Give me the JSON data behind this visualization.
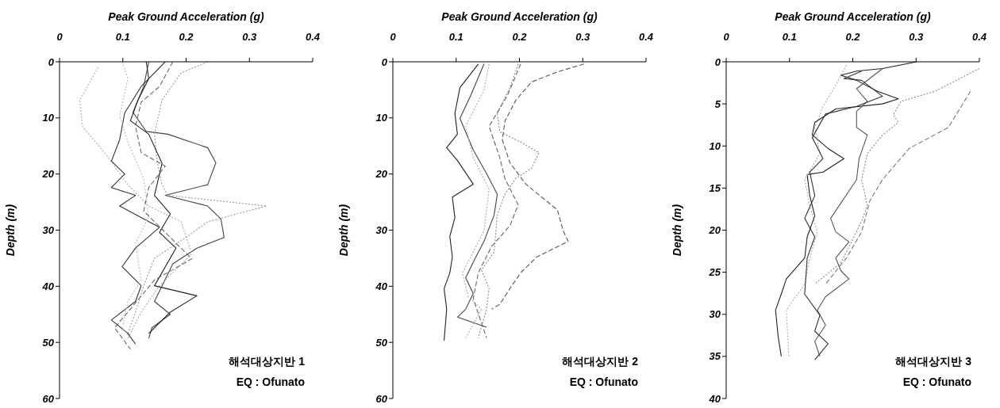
{
  "chart_data": [
    {
      "type": "line",
      "xlabel": "Peak Ground Acceleration (g)",
      "ylabel": "Depth (m)",
      "xlim": [
        0,
        0.4
      ],
      "xticks": [
        0,
        0.1,
        0.2,
        0.3,
        0.4
      ],
      "ylim": [
        60,
        0
      ],
      "yticks": [
        0,
        10,
        20,
        30,
        40,
        50,
        60
      ],
      "marker": "none",
      "annotations": [
        "해석대상지반 1",
        "EQ : Ofunato"
      ],
      "series": [
        {
          "color": "#444444",
          "line_style": "solid",
          "x": [
            0.141,
            0.133,
            0.116,
            0.137,
            0.171,
            0.234,
            0.247,
            0.234,
            0.167,
            0.234,
            0.255,
            0.26,
            0.217,
            0.179,
            0.15,
            0.175,
            0.146,
            0.141
          ],
          "values": [
            0,
            4.4,
            9,
            12.4,
            12.9,
            15.3,
            18,
            21.9,
            23.8,
            25.7,
            28,
            31.3,
            33.2,
            36,
            42.7,
            45,
            47.4,
            49.3
          ]
        },
        {
          "color": "#999999",
          "line_style": "dotted",
          "x": [
            0.234,
            0.192,
            0.162,
            0.15,
            0.154,
            0.162,
            0.171,
            0.327,
            0.234,
            0.2,
            0.15,
            0.133,
            0.12,
            0.108
          ],
          "values": [
            0,
            2,
            6.8,
            12.9,
            17.6,
            21.9,
            23.8,
            25.7,
            28.5,
            31.3,
            35,
            39.9,
            44.6,
            48.4
          ]
        },
        {
          "color": "#aaaaaa",
          "line_style": "dotted",
          "x": [
            0.061,
            0.032,
            0.036,
            0.061,
            0.078,
            0.108,
            0.141,
            0.192,
            0.209,
            0.158,
            0.129,
            0.108
          ],
          "values": [
            1,
            6.8,
            11.5,
            14.8,
            17.2,
            21.9,
            25.7,
            28.5,
            34.2,
            39.9,
            44.6,
            49.3
          ]
        },
        {
          "color": "#333333",
          "line_style": "solid",
          "x": [
            0.167,
            0.129,
            0.103,
            0.095,
            0.082,
            0.103,
            0.082,
            0.12,
            0.095,
            0.158,
            0.12,
            0.099,
            0.129,
            0.12,
            0.082,
            0.108,
            0.12
          ],
          "values": [
            0,
            4.4,
            9.1,
            13.9,
            17.7,
            20,
            22.4,
            23.8,
            25.7,
            29.5,
            33.2,
            36.5,
            39.9,
            42.7,
            46,
            48.4,
            50.3
          ]
        },
        {
          "color": "#222222",
          "line_style": "solid",
          "x": [
            0.137,
            0.141,
            0.124,
            0.112,
            0.141,
            0.162,
            0.15,
            0.175,
            0.158,
            0.184,
            0.15,
            0.217,
            0.175,
            0.141
          ],
          "values": [
            0,
            3,
            6.8,
            10.5,
            12.9,
            18.1,
            23.8,
            27.1,
            30.4,
            33.2,
            39.9,
            41.7,
            44.6,
            48.4
          ]
        },
        {
          "color": "#666666",
          "line_style": "dashed",
          "x": [
            0.179,
            0.158,
            0.129,
            0.12,
            0.129,
            0.167,
            0.141,
            0.133,
            0.167,
            0.209,
            0.15,
            0.108,
            0.087,
            0.112
          ],
          "values": [
            0,
            4.4,
            7.2,
            11.5,
            16.2,
            18.6,
            22.4,
            26.6,
            30.4,
            35.1,
            38.9,
            44.6,
            47.4,
            51.2
          ]
        },
        {
          "color": "#bbbbbb",
          "line_style": "dotted",
          "x": [
            0.099,
            0.108,
            0.095,
            0.108,
            0.133,
            0.141,
            0.12,
            0.129,
            0.108,
            0.099,
            0.112
          ],
          "values": [
            0,
            3,
            9.6,
            14.3,
            20.9,
            27.6,
            32.3,
            38.9,
            42.7,
            47.4,
            49.3
          ]
        }
      ]
    },
    {
      "type": "line",
      "xlabel": "Peak Ground Acceleration (g)",
      "ylabel": "Depth (m)",
      "xlim": [
        0,
        0.4
      ],
      "xticks": [
        0,
        0.1,
        0.2,
        0.3,
        0.4
      ],
      "ylim": [
        60,
        0
      ],
      "yticks": [
        0,
        10,
        20,
        30,
        40,
        50,
        60
      ],
      "marker": "none",
      "annotations": [
        "해석대상지반 2",
        "EQ : Ofunato"
      ],
      "series": [
        {
          "color": "#555555",
          "line_style": "dashed",
          "x": [
            0.302,
            0.26,
            0.219,
            0.194,
            0.177,
            0.173,
            0.185,
            0.21,
            0.235,
            0.26,
            0.269,
            0.277,
            0.227,
            0.202,
            0.185,
            0.169,
            0.156
          ],
          "values": [
            0.4,
            1.8,
            3.6,
            6.9,
            10.6,
            13.9,
            18,
            21.8,
            24.1,
            26.4,
            30.1,
            32,
            34.8,
            37.6,
            40.4,
            43.2,
            44.1
          ]
        },
        {
          "color": "#888888",
          "line_style": "dotted",
          "x": [
            0.198,
            0.185,
            0.165,
            0.169,
            0.202,
            0.231,
            0.219,
            0.194,
            0.177,
            0.165,
            0.16,
            0.14,
            0.152,
            0.148,
            0.135
          ],
          "values": [
            0.4,
            4.6,
            9.2,
            12.5,
            14.3,
            16.2,
            19,
            20.8,
            23.6,
            27.3,
            33.9,
            37.1,
            40.4,
            44.1,
            49.2
          ]
        },
        {
          "color": "#222222",
          "line_style": "solid",
          "x": [
            0.135,
            0.106,
            0.098,
            0.102,
            0.085,
            0.102,
            0.127,
            0.094,
            0.098,
            0.09,
            0.094,
            0.09,
            0.081,
            0.085,
            0.081
          ],
          "values": [
            0.4,
            4.6,
            9.2,
            12.9,
            15.3,
            17.6,
            21.8,
            24.1,
            27.8,
            31.1,
            34.8,
            37.6,
            40.4,
            44.1,
            49.7
          ]
        },
        {
          "color": "#444444",
          "line_style": "solid",
          "x": [
            0.144,
            0.123,
            0.106,
            0.127,
            0.148,
            0.165,
            0.16,
            0.144,
            0.131,
            0.115,
            0.127,
            0.115,
            0.102,
            0.148
          ],
          "values": [
            0.4,
            6,
            10.1,
            15.7,
            19.9,
            23.6,
            27.3,
            32,
            34.8,
            38.5,
            41.3,
            44.1,
            45.5,
            47.3
          ]
        },
        {
          "color": "#aaaaaa",
          "line_style": "dotted",
          "x": [
            0.152,
            0.144,
            0.115,
            0.127,
            0.152,
            0.144,
            0.127,
            0.11,
            0.119,
            0.14,
            0.115
          ],
          "values": [
            0.4,
            5,
            11.5,
            17.1,
            22.7,
            30.1,
            33.9,
            37.6,
            41.8,
            44.1,
            49.2
          ]
        },
        {
          "color": "#666666",
          "line_style": "dashed",
          "x": [
            0.202,
            0.181,
            0.152,
            0.169,
            0.177,
            0.198,
            0.185,
            0.156,
            0.135,
            0.127,
            0.148
          ],
          "values": [
            0.4,
            6,
            11.5,
            17.1,
            20.8,
            25.5,
            29.2,
            32.9,
            37.6,
            42.2,
            49.2
          ]
        }
      ]
    },
    {
      "type": "line",
      "xlabel": "Peak Ground Acceleration (g)",
      "ylabel": "Depth (m)",
      "xlim": [
        0,
        0.4
      ],
      "xticks": [
        0,
        0.1,
        0.2,
        0.3,
        0.4
      ],
      "ylim": [
        40,
        0
      ],
      "yticks": [
        0,
        5,
        10,
        15,
        20,
        25,
        30,
        35,
        40
      ],
      "marker": "none",
      "annotations": [
        "해석대상지반 3",
        "EQ : Ofunato"
      ],
      "series": [
        {
          "color": "#777777",
          "line_style": "dashed",
          "x": [
            0.386,
            0.351,
            0.289,
            0.247,
            0.227,
            0.214,
            0.19,
            0.157
          ],
          "values": [
            3.5,
            7.8,
            10.3,
            14,
            16.5,
            20.2,
            23.3,
            26.4
          ]
        },
        {
          "color": "#888888",
          "line_style": "dotted",
          "x": [
            0.4,
            0.33,
            0.276,
            0.264,
            0.272,
            0.247,
            0.223,
            0.214,
            0.223,
            0.214,
            0.194,
            0.181,
            0.14
          ],
          "values": [
            0.8,
            3.5,
            4.7,
            6.3,
            7.2,
            8.7,
            10.9,
            14,
            17.1,
            18.9,
            22,
            23.9,
            26.4
          ]
        },
        {
          "color": "#222222",
          "line_style": "solid",
          "x": [
            0.301,
            0.247,
            0.206,
            0.181,
            0.206,
            0.239,
            0.272,
            0.247,
            0.173,
            0.14,
            0.136,
            0.161,
            0.186,
            0.153,
            0.128,
            0.132,
            0.14,
            0.128,
            0.124,
            0.095,
            0.087,
            0.078,
            0.082,
            0.087
          ],
          "values": [
            0,
            0.8,
            1.1,
            1.6,
            2.2,
            3.5,
            4.4,
            5,
            5.6,
            7.2,
            8.7,
            10.3,
            11.5,
            13.1,
            13.4,
            15.9,
            18.3,
            20.8,
            23.3,
            25.8,
            27.6,
            29.5,
            32.6,
            35
          ]
        },
        {
          "color": "#555555",
          "line_style": "solid",
          "x": [
            0.247,
            0.206,
            0.223,
            0.206,
            0.206,
            0.223,
            0.21,
            0.206,
            0.165,
            0.173,
            0.194,
            0.173,
            0.181,
            0.194,
            0.157,
            0.144,
            0.157,
            0.14,
            0.148
          ],
          "values": [
            0.8,
            3.2,
            4.7,
            5.9,
            7.8,
            8.7,
            11.5,
            14,
            18.6,
            20.2,
            21.4,
            23.3,
            24.8,
            25.8,
            27.9,
            29.5,
            31.3,
            33.2,
            35
          ]
        },
        {
          "color": "#aaaaaa",
          "line_style": "dotted",
          "x": [
            0.19,
            0.173,
            0.153,
            0.14,
            0.148,
            0.124,
            0.132,
            0.144,
            0.132,
            0.124,
            0.095,
            0.099
          ],
          "values": [
            0.4,
            2.8,
            5.3,
            7.8,
            10.9,
            14,
            17.1,
            20.2,
            23.3,
            26.4,
            29.5,
            35
          ]
        },
        {
          "color": "#333333",
          "line_style": "solid",
          "x": [
            0.214,
            0.186,
            0.214,
            0.247,
            0.206,
            0.157,
            0.136,
            0.153,
            0.132,
            0.14,
            0.124,
            0.14,
            0.128,
            0.124,
            0.148,
            0.14,
            0.161,
            0.14
          ],
          "values": [
            1.1,
            2,
            2.2,
            4.1,
            5.3,
            6.2,
            9,
            11.5,
            13.1,
            15.9,
            18.6,
            20.8,
            23.3,
            27.6,
            30.1,
            32,
            33.5,
            35.4
          ]
        }
      ]
    }
  ]
}
